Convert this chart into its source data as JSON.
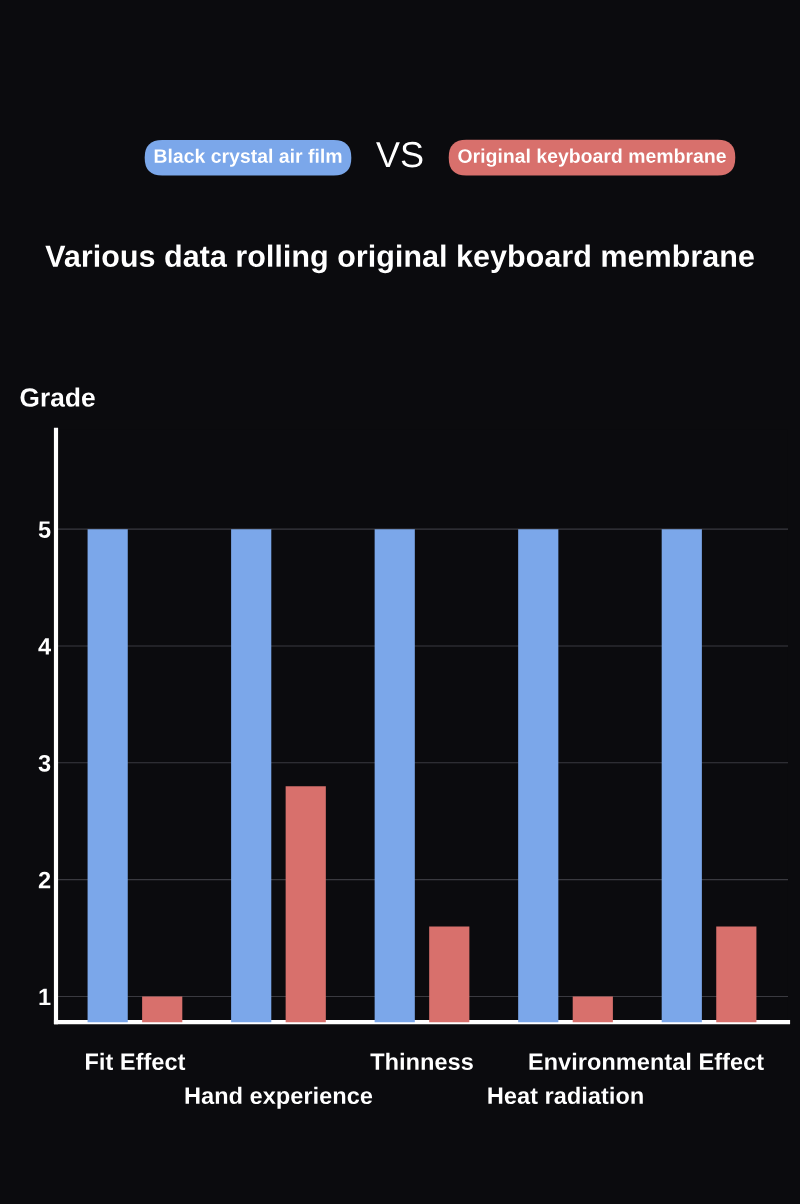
{
  "chart_data": {
    "type": "bar",
    "title": "Various data rolling original keyboard membrane",
    "ylabel": "Grade",
    "categories": [
      "Fit Effect",
      "Hand experience",
      "Thinness",
      "Heat radiation",
      "Environmental Effect"
    ],
    "series": [
      {
        "name": "Black crystal air film",
        "color": "#7ba7ea",
        "values": [
          5,
          5,
          5,
          5,
          5
        ]
      },
      {
        "name": "Original keyboard membrane",
        "color": "#d8706c",
        "values": [
          1,
          2.8,
          1.6,
          1,
          1.6
        ]
      }
    ],
    "annotations": [
      "VS"
    ],
    "ylim": [
      0.78,
      5.85
    ],
    "yticks": [
      1,
      2,
      3,
      4,
      5
    ],
    "grid": "y",
    "legend": "top"
  }
}
